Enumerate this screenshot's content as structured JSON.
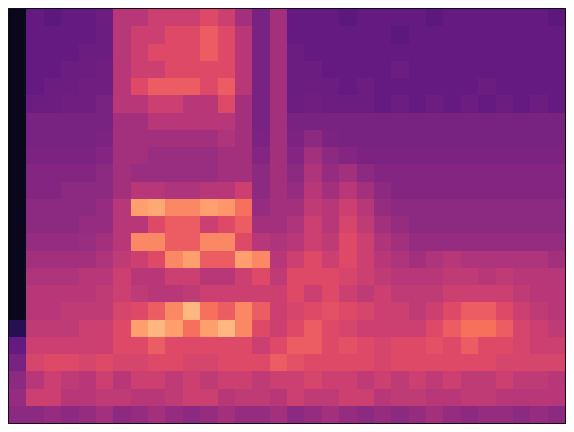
{
  "chart_data": {
    "type": "heatmap",
    "color": "magma",
    "tick_labels": false,
    "xlim": [
      -0.5,
      31.5
    ],
    "ylim": [
      23.5,
      -0.5
    ],
    "zlim": [
      0,
      10
    ],
    "z": [
      [
        0.5,
        3,
        2.8,
        3,
        3,
        3.2,
        5,
        5,
        5.5,
        5.5,
        5.5,
        6,
        5.5,
        4.5,
        3.5,
        4.5,
        3,
        3,
        3,
        2.8,
        3,
        3,
        3,
        3,
        2.8,
        3,
        3,
        3,
        3,
        3,
        3,
        2.8
      ],
      [
        0.5,
        3,
        3,
        3,
        3,
        3.2,
        5,
        5.5,
        5.5,
        6,
        6,
        6.5,
        6,
        5,
        3.5,
        4.5,
        3,
        3,
        3,
        3,
        3,
        3,
        2.8,
        3,
        3,
        3,
        3,
        3,
        3,
        3,
        3,
        3
      ],
      [
        0.5,
        3,
        3,
        3,
        3.2,
        3.2,
        5,
        5.5,
        6,
        6,
        6,
        6.5,
        6,
        5,
        3.5,
        4.5,
        3.2,
        3,
        3,
        3,
        3,
        3,
        3,
        3,
        3,
        3,
        3,
        3,
        3,
        3,
        3,
        3
      ],
      [
        0.5,
        3,
        3,
        3.2,
        3.2,
        3.3,
        5,
        5.5,
        5.5,
        6,
        6,
        6,
        6,
        5,
        3.5,
        4.5,
        3.2,
        3.2,
        3,
        3,
        3,
        3,
        3.2,
        3,
        3,
        3,
        3,
        3,
        3,
        3,
        3,
        3
      ],
      [
        0.5,
        3,
        3.2,
        3.2,
        3.3,
        3.3,
        5,
        6,
        6.5,
        6.5,
        6.5,
        6,
        6.5,
        5,
        3.5,
        4.5,
        3.2,
        3.2,
        3.2,
        3,
        3.2,
        3,
        3,
        3,
        3,
        3,
        3,
        3.2,
        3,
        3,
        3,
        3
      ],
      [
        0.5,
        3.2,
        3.2,
        3.3,
        3.3,
        3.5,
        5,
        5,
        5.5,
        5.5,
        5,
        5,
        6,
        4.5,
        3.5,
        4.5,
        3.2,
        3.3,
        3.2,
        3.2,
        3.2,
        3,
        3.2,
        3,
        3.2,
        3,
        3.2,
        3,
        3.2,
        3,
        3.2,
        3
      ],
      [
        0.5,
        3.5,
        3.5,
        3.5,
        3.5,
        3.5,
        4.5,
        4.5,
        5,
        5,
        5,
        5,
        5,
        4.5,
        3.5,
        4.5,
        3.5,
        3.5,
        3.5,
        3.5,
        3.5,
        3.5,
        3.5,
        3.5,
        3.5,
        3.5,
        3.5,
        3.5,
        3.5,
        3.5,
        3.5,
        3.5
      ],
      [
        0.5,
        3.5,
        3.5,
        3.5,
        3.5,
        3.6,
        4.5,
        4.5,
        4.5,
        4.5,
        4.5,
        4.5,
        4.8,
        4.5,
        3.6,
        4.5,
        3.6,
        4,
        3.6,
        3.5,
        3.5,
        3.5,
        3.5,
        3.5,
        3.5,
        3.5,
        3.5,
        3.5,
        3.5,
        3.5,
        3.5,
        3.5
      ],
      [
        0.5,
        3.6,
        3.6,
        3.6,
        3.6,
        3.8,
        4.5,
        4.5,
        4.3,
        4.3,
        4.3,
        4.3,
        4.5,
        4.5,
        3.8,
        4.5,
        3.8,
        4.5,
        4,
        3.8,
        3.6,
        3.6,
        3.6,
        3.6,
        3.6,
        3.6,
        3.6,
        3.6,
        3.6,
        3.6,
        3.6,
        3.6
      ],
      [
        0.5,
        3.8,
        3.8,
        3.8,
        3.8,
        4,
        4.5,
        4.3,
        4.3,
        4.3,
        4.3,
        4.3,
        4.5,
        4.5,
        4,
        4.5,
        4,
        4.8,
        4.2,
        4.5,
        4,
        3.8,
        3.8,
        3.8,
        3.8,
        3.8,
        3.8,
        3.8,
        3.8,
        3.8,
        3.8,
        3.8
      ],
      [
        0.5,
        3.8,
        3.8,
        4,
        4,
        4,
        4.5,
        5,
        5,
        4.8,
        4.8,
        5,
        5,
        5.5,
        4,
        4.5,
        4.2,
        5,
        4.5,
        5,
        4.5,
        4,
        3.8,
        3.8,
        3.8,
        3.8,
        3.8,
        3.8,
        3.8,
        3.8,
        3.8,
        3.8
      ],
      [
        0.5,
        4,
        4,
        4,
        4,
        4.2,
        5,
        8,
        8.2,
        7.5,
        7.5,
        8,
        7.8,
        7,
        4.2,
        4.5,
        4.5,
        5.2,
        5,
        5.5,
        5,
        4.2,
        4,
        4,
        4,
        4,
        4,
        4,
        4,
        4,
        4,
        4
      ],
      [
        0.5,
        4,
        4,
        4,
        4.2,
        4.2,
        5,
        5,
        6,
        6.5,
        6.5,
        5.5,
        6,
        6.5,
        4.5,
        4.5,
        4.8,
        5.5,
        5,
        5.8,
        5.2,
        4.5,
        4.2,
        4,
        4,
        4,
        4,
        4,
        4,
        4,
        4,
        4
      ],
      [
        0.5,
        4.2,
        4.2,
        4.2,
        4.3,
        4.5,
        5,
        7.5,
        7.5,
        6.5,
        6.5,
        7.5,
        7.5,
        6,
        5,
        4.8,
        5,
        5.5,
        5.2,
        6,
        5.5,
        4.8,
        4.5,
        4.2,
        4.2,
        4.2,
        4.2,
        4.2,
        4.2,
        4.2,
        4.2,
        4.2
      ],
      [
        0.5,
        4.5,
        4.5,
        4.5,
        4.5,
        4.8,
        5.2,
        5.5,
        6,
        7.5,
        8,
        6.5,
        6.5,
        8,
        7.5,
        5,
        5.5,
        6,
        5.5,
        6,
        5.5,
        5,
        4.8,
        4.5,
        4.8,
        5,
        4.8,
        4.8,
        4.8,
        4.8,
        4.8,
        4.5
      ],
      [
        0.5,
        4.8,
        4.8,
        4.8,
        5,
        5,
        5.5,
        5,
        5,
        5.5,
        5.5,
        5,
        5,
        5.5,
        6,
        5.2,
        6,
        6,
        6,
        5.8,
        5.5,
        5.2,
        5,
        5,
        5,
        5.2,
        5.2,
        5,
        5.2,
        5,
        5,
        5
      ],
      [
        0.5,
        5,
        5,
        5,
        5,
        5.2,
        5.5,
        5.2,
        5,
        5,
        5.2,
        5.5,
        5.5,
        5.5,
        5.5,
        5.5,
        6,
        5.5,
        6,
        5.5,
        5.2,
        5.5,
        5.2,
        5.2,
        5.2,
        5.5,
        5.5,
        5.5,
        5.5,
        5.2,
        5,
        5
      ],
      [
        0.5,
        5,
        5,
        5.2,
        5.2,
        5.2,
        5.8,
        6,
        6.5,
        7.5,
        8.5,
        7,
        6.5,
        7.5,
        6.5,
        5.5,
        5.8,
        6,
        6.2,
        6,
        5.8,
        5.5,
        5.5,
        5.2,
        5.5,
        6,
        6.5,
        6.5,
        6,
        5.5,
        5.2,
        5
      ],
      [
        1.5,
        5.2,
        5.2,
        5.2,
        5.5,
        5.5,
        6,
        8,
        8.5,
        8,
        7,
        8,
        8.5,
        7.5,
        6,
        5.5,
        6,
        6.5,
        6,
        5.8,
        5.5,
        5.5,
        5.5,
        5.5,
        6,
        6.5,
        7,
        7,
        6.5,
        5.8,
        5.5,
        5.2
      ],
      [
        3,
        5.5,
        5.5,
        5.5,
        5.5,
        5.5,
        6,
        6,
        6.5,
        6,
        6,
        6,
        6,
        6,
        5.5,
        6,
        6.5,
        6.5,
        6,
        6.2,
        6,
        5.8,
        6,
        6,
        6.2,
        6,
        6.5,
        6,
        6,
        5.8,
        5.5,
        5.5
      ],
      [
        3.5,
        5.8,
        6,
        6,
        5.8,
        6,
        5.8,
        5.8,
        6,
        6,
        5.8,
        5.8,
        6,
        6,
        6,
        6.5,
        6.2,
        6,
        6,
        6,
        6,
        5.8,
        6,
        6,
        6,
        6,
        6,
        6,
        5.8,
        5.8,
        5.8,
        5.8
      ],
      [
        4,
        5,
        5.5,
        5.2,
        5,
        5.5,
        5,
        5.5,
        5.5,
        5.2,
        5.5,
        5.2,
        5.5,
        5.5,
        5.2,
        5.5,
        5.5,
        5.8,
        5.5,
        5.5,
        5.2,
        5.5,
        5.2,
        5.5,
        5.2,
        5.5,
        5.2,
        5.2,
        5.5,
        5.2,
        5.2,
        5
      ],
      [
        4.2,
        5.5,
        5.5,
        5,
        5,
        5.2,
        5.2,
        5,
        5,
        5.2,
        5.5,
        5.5,
        5,
        5.2,
        5.2,
        5,
        5.5,
        5.2,
        5.2,
        5.5,
        5.5,
        5,
        5.2,
        5.2,
        5,
        5,
        5.2,
        5.2,
        5,
        5,
        5,
        5
      ],
      [
        4,
        4,
        4.2,
        4,
        4.2,
        4.5,
        4,
        4.2,
        4.5,
        4.2,
        4,
        4.2,
        4.5,
        4.2,
        4.2,
        4.5,
        4,
        4.2,
        4.5,
        4.2,
        4,
        4.2,
        4,
        4.2,
        4.5,
        4.2,
        4,
        4.2,
        4.2,
        4,
        4.2,
        4
      ]
    ]
  }
}
